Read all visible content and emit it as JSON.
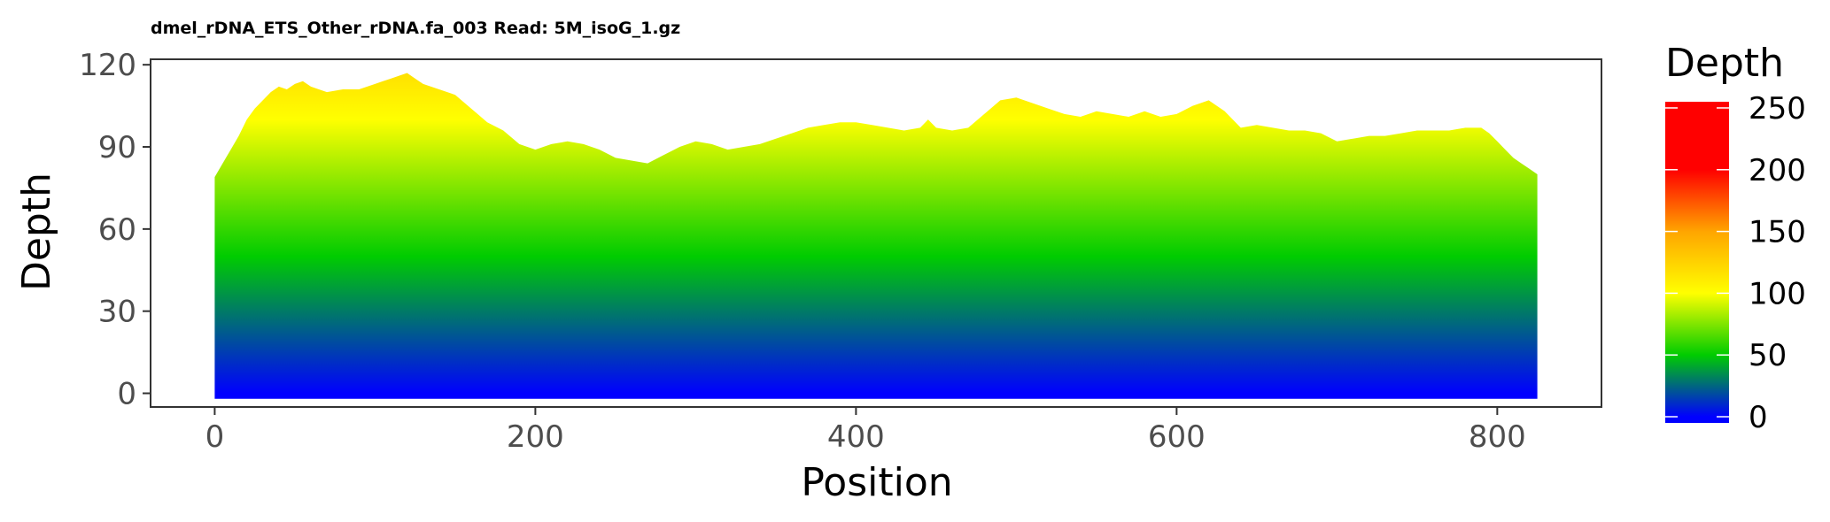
{
  "chart_data": {
    "type": "area",
    "title": "dmel_rDNA_ETS_Other_rDNA.fa_003 Read: 5M_isoG_1.gz",
    "xlabel": "Position",
    "ylabel": "Depth",
    "xlim": [
      -40,
      865
    ],
    "ylim": [
      -5,
      122
    ],
    "x_ticks": [
      0,
      200,
      400,
      600,
      800
    ],
    "y_ticks": [
      0,
      30,
      60,
      90,
      120
    ],
    "grid": false,
    "series": [
      {
        "x": [
          0,
          5,
          10,
          15,
          20,
          25,
          30,
          35,
          40,
          45,
          50,
          55,
          60,
          65,
          70,
          80,
          90,
          100,
          105,
          110,
          115,
          120,
          125,
          130,
          140,
          150,
          160,
          170,
          180,
          190,
          200,
          210,
          220,
          230,
          240,
          250,
          260,
          270,
          280,
          290,
          300,
          310,
          320,
          330,
          340,
          350,
          360,
          370,
          380,
          390,
          400,
          410,
          420,
          430,
          440,
          445,
          450,
          460,
          470,
          480,
          490,
          500,
          510,
          520,
          530,
          540,
          550,
          560,
          570,
          580,
          590,
          600,
          610,
          620,
          630,
          640,
          650,
          660,
          670,
          680,
          690,
          700,
          710,
          720,
          730,
          740,
          750,
          760,
          770,
          780,
          790,
          795,
          800,
          805,
          810,
          815,
          820,
          825
        ],
        "values": [
          79,
          84,
          89,
          94,
          100,
          104,
          107,
          110,
          112,
          111,
          113,
          114,
          112,
          111,
          110,
          111,
          111,
          113,
          114,
          115,
          116,
          117,
          115,
          113,
          111,
          109,
          104,
          99,
          96,
          91,
          89,
          91,
          92,
          91,
          89,
          86,
          85,
          84,
          87,
          90,
          92,
          91,
          89,
          90,
          91,
          93,
          95,
          97,
          98,
          99,
          99,
          98,
          97,
          96,
          97,
          100,
          97,
          96,
          97,
          102,
          107,
          108,
          106,
          104,
          102,
          101,
          103,
          102,
          101,
          103,
          101,
          102,
          105,
          107,
          103,
          97,
          98,
          97,
          96,
          96,
          95,
          92,
          93,
          94,
          94,
          95,
          96,
          96,
          96,
          97,
          97,
          95,
          92,
          89,
          86,
          84,
          82,
          80
        ]
      }
    ],
    "colorbar": {
      "title": "Depth",
      "ticks": [
        0,
        50,
        100,
        150,
        200,
        250
      ],
      "limits": [
        -5,
        255
      ],
      "colors": [
        "#0000ff",
        "#00cc00",
        "#ffff00",
        "#ffa500",
        "#ff0000"
      ],
      "color_stops": [
        0,
        50,
        100,
        150,
        200
      ]
    }
  }
}
